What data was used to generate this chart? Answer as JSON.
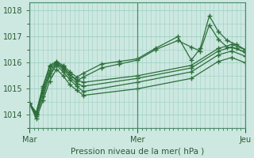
{
  "title": "",
  "xlabel": "Pression niveau de la mer( hPa )",
  "ylabel": "",
  "bg_color": "#cce8e0",
  "plot_bg_color": "#cce8e0",
  "grid_color": "#9fcfc5",
  "line_color": "#2d6e3a",
  "xlim": [
    0,
    48
  ],
  "ylim": [
    1013.5,
    1018.3
  ],
  "yticks": [
    1014,
    1015,
    1016,
    1017,
    1018
  ],
  "xtick_labels": [
    "Mar",
    "Mer",
    "Jeu"
  ],
  "xtick_positions": [
    0,
    24,
    48
  ],
  "lines": [
    {
      "x": [
        0,
        1.5,
        3,
        4.5,
        6,
        7.5,
        9,
        10.5,
        12,
        24,
        36,
        42,
        45,
        48
      ],
      "y": [
        1014.45,
        1014.0,
        1014.95,
        1015.7,
        1016.0,
        1015.85,
        1015.55,
        1015.35,
        1015.25,
        1015.5,
        1015.9,
        1016.55,
        1016.7,
        1016.5
      ]
    },
    {
      "x": [
        0,
        1.5,
        3,
        4.5,
        6,
        7.5,
        9,
        10.5,
        12,
        24,
        36,
        42,
        45,
        48
      ],
      "y": [
        1014.45,
        1013.95,
        1014.7,
        1015.5,
        1015.9,
        1015.65,
        1015.35,
        1015.1,
        1014.9,
        1015.25,
        1015.65,
        1016.3,
        1016.45,
        1016.25
      ]
    },
    {
      "x": [
        0,
        1.5,
        3,
        4.5,
        6,
        7.5,
        9,
        10.5,
        12,
        24,
        36,
        42,
        45,
        48
      ],
      "y": [
        1014.45,
        1014.05,
        1014.85,
        1015.6,
        1015.95,
        1015.75,
        1015.45,
        1015.2,
        1015.1,
        1015.4,
        1015.8,
        1016.45,
        1016.6,
        1016.4
      ]
    },
    {
      "x": [
        0,
        1.5,
        3,
        4.5,
        6,
        7.5,
        9,
        10.5,
        12,
        24,
        36,
        42,
        45,
        48
      ],
      "y": [
        1014.45,
        1013.85,
        1014.55,
        1015.3,
        1015.75,
        1015.5,
        1015.15,
        1014.95,
        1014.75,
        1015.0,
        1015.4,
        1016.05,
        1016.2,
        1016.0
      ]
    },
    {
      "x": [
        0,
        1.5,
        3,
        4.5,
        6,
        7.5,
        9,
        10.5,
        12,
        16,
        20,
        24,
        28,
        33,
        36,
        38,
        40,
        42,
        44,
        46,
        48
      ],
      "y": [
        1014.45,
        1014.1,
        1015.1,
        1015.9,
        1016.05,
        1015.9,
        1015.65,
        1015.45,
        1015.6,
        1015.95,
        1016.05,
        1016.15,
        1016.55,
        1017.0,
        1016.1,
        1016.55,
        1017.8,
        1017.2,
        1016.85,
        1016.7,
        1016.5
      ]
    },
    {
      "x": [
        0,
        1.5,
        3,
        4.5,
        6,
        7.5,
        9,
        10.5,
        12,
        16,
        20,
        24,
        28,
        33,
        36,
        38,
        40,
        42,
        44,
        46,
        48
      ],
      "y": [
        1014.45,
        1014.05,
        1015.05,
        1015.85,
        1016.0,
        1015.8,
        1015.55,
        1015.3,
        1015.45,
        1015.8,
        1015.95,
        1016.1,
        1016.5,
        1016.85,
        1016.6,
        1016.45,
        1017.45,
        1016.9,
        1016.6,
        1016.55,
        1016.4
      ]
    }
  ]
}
